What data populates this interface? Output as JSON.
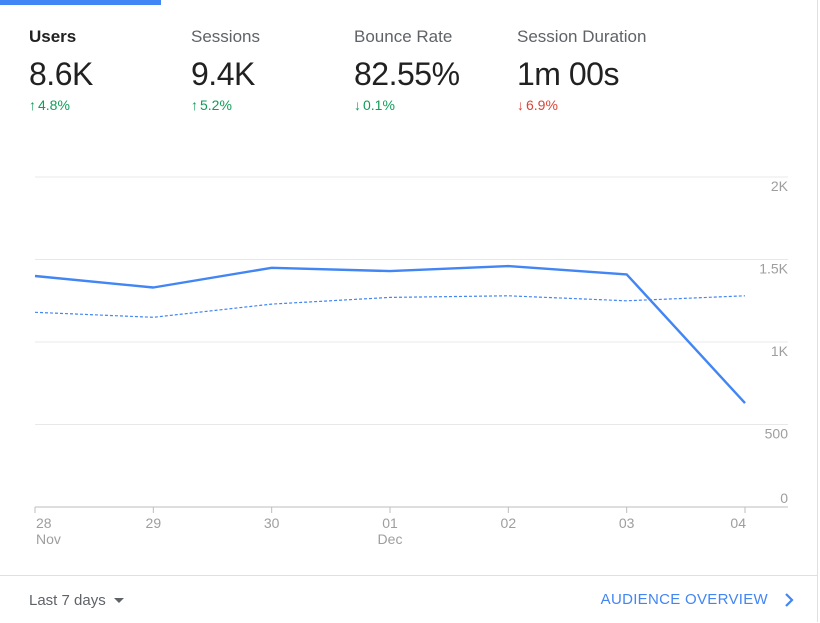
{
  "metrics": [
    {
      "label": "Users",
      "value": "8.6K",
      "delta": "4.8%",
      "direction": "up",
      "color": "#0f9d58",
      "selected": true
    },
    {
      "label": "Sessions",
      "value": "9.4K",
      "delta": "5.2%",
      "direction": "up",
      "color": "#0f9d58",
      "selected": false
    },
    {
      "label": "Bounce Rate",
      "value": "82.55%",
      "delta": "0.1%",
      "direction": "down",
      "color": "#0f9d58",
      "selected": false
    },
    {
      "label": "Session Duration",
      "value": "1m 00s",
      "delta": "6.9%",
      "direction": "down",
      "color": "#db4437",
      "selected": false
    }
  ],
  "chart_data": {
    "type": "line",
    "x": [
      {
        "day": "28",
        "month": "Nov"
      },
      {
        "day": "29",
        "month": ""
      },
      {
        "day": "30",
        "month": ""
      },
      {
        "day": "01",
        "month": "Dec"
      },
      {
        "day": "02",
        "month": ""
      },
      {
        "day": "03",
        "month": ""
      },
      {
        "day": "04",
        "month": ""
      }
    ],
    "series": [
      {
        "values": [
          1400,
          1330,
          1450,
          1430,
          1460,
          1410,
          630
        ],
        "style": "solid",
        "color": "#4285f4"
      },
      {
        "values": [
          1180,
          1150,
          1230,
          1270,
          1280,
          1250,
          1280
        ],
        "style": "dashed",
        "color": "#4285f4"
      }
    ],
    "ylim": [
      0,
      2000
    ],
    "yticks": [
      {
        "value": 2000,
        "label": "2K"
      },
      {
        "value": 1500,
        "label": "1.5K"
      },
      {
        "value": 1000,
        "label": "1K"
      },
      {
        "value": 500,
        "label": "500"
      },
      {
        "value": 0,
        "label": "0"
      }
    ],
    "grid": true
  },
  "footer": {
    "range_label": "Last 7 days",
    "overview_label": "AUDIENCE OVERVIEW"
  }
}
